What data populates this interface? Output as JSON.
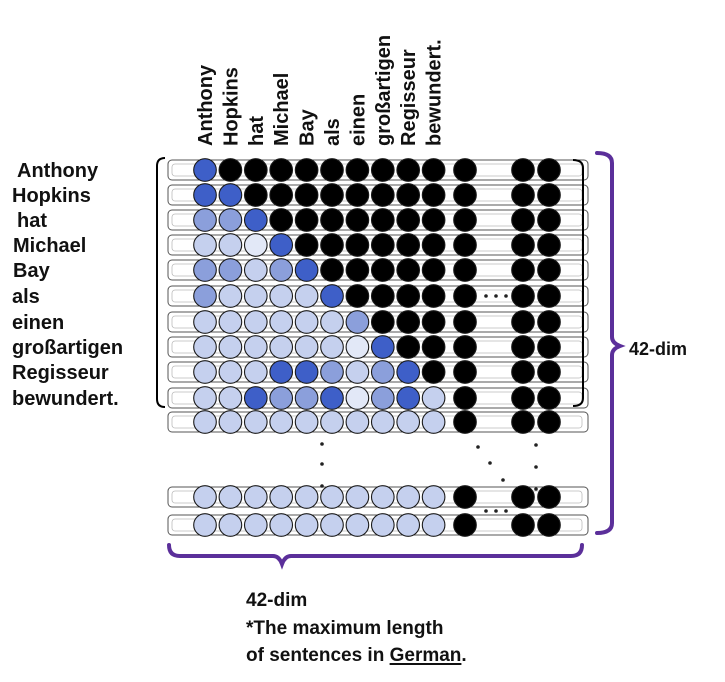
{
  "column_labels": [
    "Anthony",
    "Hopkins",
    "hat",
    "Michael",
    "Bay",
    "als",
    "einen",
    "großartigen",
    "Regisseur",
    "bewundert."
  ],
  "row_labels": [
    "Anthony",
    "Hopkins",
    "hat",
    "Michael",
    "Bay",
    "als",
    "einen",
    "großartigen",
    "Regisseur",
    "bewundert."
  ],
  "dimension_right": "42-dim",
  "dimension_bottom": "42-dim",
  "note": {
    "line1": "*The maximum length",
    "line2_prefix": "of sentences in ",
    "line2_underlined": "German",
    "line2_suffix": "."
  },
  "colors": {
    "dark_blue": "#3e5fc8",
    "mid_blue": "#8b9fdb",
    "light_blue": "#c5d0ee",
    "pale_blue": "#e2e8f7",
    "black": "#000000",
    "bracket_purple": "#5b2f9a"
  },
  "attention_levels": [
    [
      4,
      9,
      9,
      9,
      9,
      9,
      9,
      9,
      9,
      9
    ],
    [
      4,
      4,
      9,
      9,
      9,
      9,
      9,
      9,
      9,
      9
    ],
    [
      3,
      3,
      4,
      9,
      9,
      9,
      9,
      9,
      9,
      9
    ],
    [
      2,
      2,
      1,
      4,
      9,
      9,
      9,
      9,
      9,
      9
    ],
    [
      3,
      3,
      2,
      3,
      4,
      9,
      9,
      9,
      9,
      9
    ],
    [
      3,
      2,
      2,
      2,
      2,
      4,
      9,
      9,
      9,
      9
    ],
    [
      2,
      2,
      2,
      2,
      2,
      2,
      3,
      9,
      9,
      9
    ],
    [
      2,
      2,
      2,
      2,
      2,
      2,
      1,
      4,
      9,
      9
    ],
    [
      2,
      2,
      2,
      4,
      4,
      3,
      2,
      3,
      4,
      9
    ],
    [
      2,
      2,
      4,
      3,
      3,
      4,
      1,
      3,
      4,
      2
    ],
    [
      2,
      2,
      2,
      2,
      2,
      2,
      2,
      2,
      2,
      2
    ]
  ],
  "padding_rows": [
    [
      2,
      2,
      2,
      2,
      2,
      2,
      2,
      2,
      2,
      2
    ],
    [
      2,
      2,
      2,
      2,
      2,
      2,
      2,
      2,
      2,
      2
    ]
  ]
}
